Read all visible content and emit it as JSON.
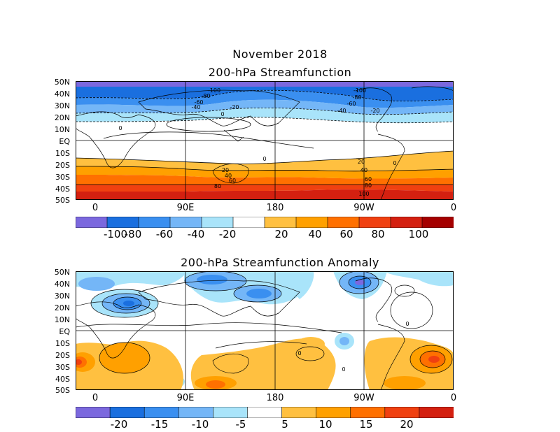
{
  "figure_title": "November 2018",
  "panels": [
    {
      "title": "200-hPa Streamfunction",
      "lat_labels": [
        "50N",
        "40N",
        "30N",
        "20N",
        "10N",
        "EQ",
        "10S",
        "20S",
        "30S",
        "40S",
        "50S"
      ],
      "lon_labels": [
        "0",
        "90E",
        "180",
        "90W",
        "0"
      ],
      "contour_labels": [
        "-100",
        "-80",
        "-60",
        "-40",
        "-20",
        "0",
        "20",
        "40",
        "60",
        "80",
        "100"
      ],
      "colorbar": {
        "colors": [
          "#7b68de",
          "#1a6fdf",
          "#3a8ff0",
          "#74b6f7",
          "#a9e4fa",
          "#ffffff",
          "#ffc040",
          "#ffa000",
          "#ff7000",
          "#f04010",
          "#d42010",
          "#a50000"
        ],
        "labels": [
          "-100",
          "-80",
          "-60",
          "-40",
          "-20",
          "20",
          "40",
          "60",
          "80",
          "100"
        ]
      }
    },
    {
      "title": "200-hPa Streamfunction Anomaly",
      "lat_labels": [
        "50N",
        "40N",
        "30N",
        "20N",
        "10N",
        "EQ",
        "10S",
        "20S",
        "30S",
        "40S",
        "50S"
      ],
      "lon_labels": [
        "0",
        "90E",
        "180",
        "90W",
        "0"
      ],
      "contour_labels": [
        "0"
      ],
      "colorbar": {
        "colors": [
          "#7b68de",
          "#1a6fdf",
          "#3a8ff0",
          "#74b6f7",
          "#a9e4fa",
          "#ffffff",
          "#ffc040",
          "#ffa000",
          "#ff7000",
          "#f04010",
          "#d42010"
        ],
        "labels": [
          "-20",
          "-15",
          "-10",
          "-5",
          "5",
          "10",
          "15",
          "20"
        ]
      }
    }
  ]
}
